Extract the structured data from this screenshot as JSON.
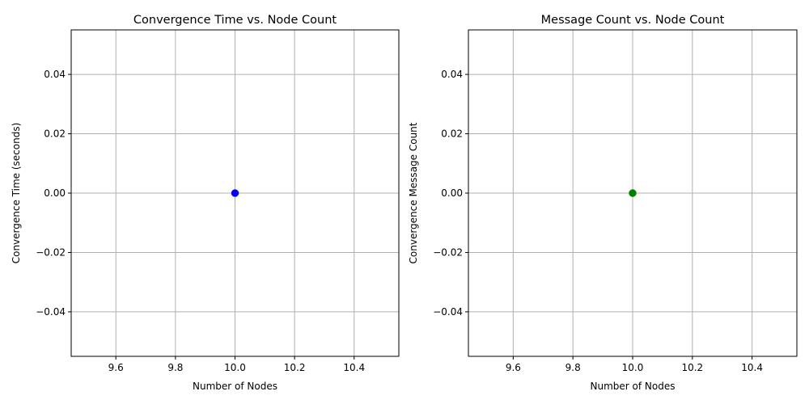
{
  "chart_data": [
    {
      "type": "scatter",
      "title": "Convergence Time vs. Node Count",
      "xlabel": "Number of Nodes",
      "ylabel": "Convergence Time (seconds)",
      "x": [
        10
      ],
      "y": [
        0
      ],
      "color": "#0000ff",
      "xlim": [
        9.45,
        10.55
      ],
      "ylim": [
        -0.055,
        0.055
      ],
      "xticks": [
        9.6,
        9.8,
        10.0,
        10.2,
        10.4
      ],
      "xtick_labels": [
        "9.6",
        "9.8",
        "10.0",
        "10.2",
        "10.4"
      ],
      "yticks": [
        -0.04,
        -0.02,
        0.0,
        0.02,
        0.04
      ],
      "ytick_labels": [
        "−0.04",
        "−0.02",
        "0.00",
        "0.02",
        "0.04"
      ],
      "grid": true
    },
    {
      "type": "scatter",
      "title": "Message Count vs. Node Count",
      "xlabel": "Number of Nodes",
      "ylabel": "Convergence Message Count",
      "x": [
        10
      ],
      "y": [
        0
      ],
      "color": "#008000",
      "xlim": [
        9.45,
        10.55
      ],
      "ylim": [
        -0.055,
        0.055
      ],
      "xticks": [
        9.6,
        9.8,
        10.0,
        10.2,
        10.4
      ],
      "xtick_labels": [
        "9.6",
        "9.8",
        "10.0",
        "10.2",
        "10.4"
      ],
      "yticks": [
        -0.04,
        -0.02,
        0.0,
        0.02,
        0.04
      ],
      "ytick_labels": [
        "−0.04",
        "−0.02",
        "0.00",
        "0.02",
        "0.04"
      ],
      "grid": true
    }
  ]
}
